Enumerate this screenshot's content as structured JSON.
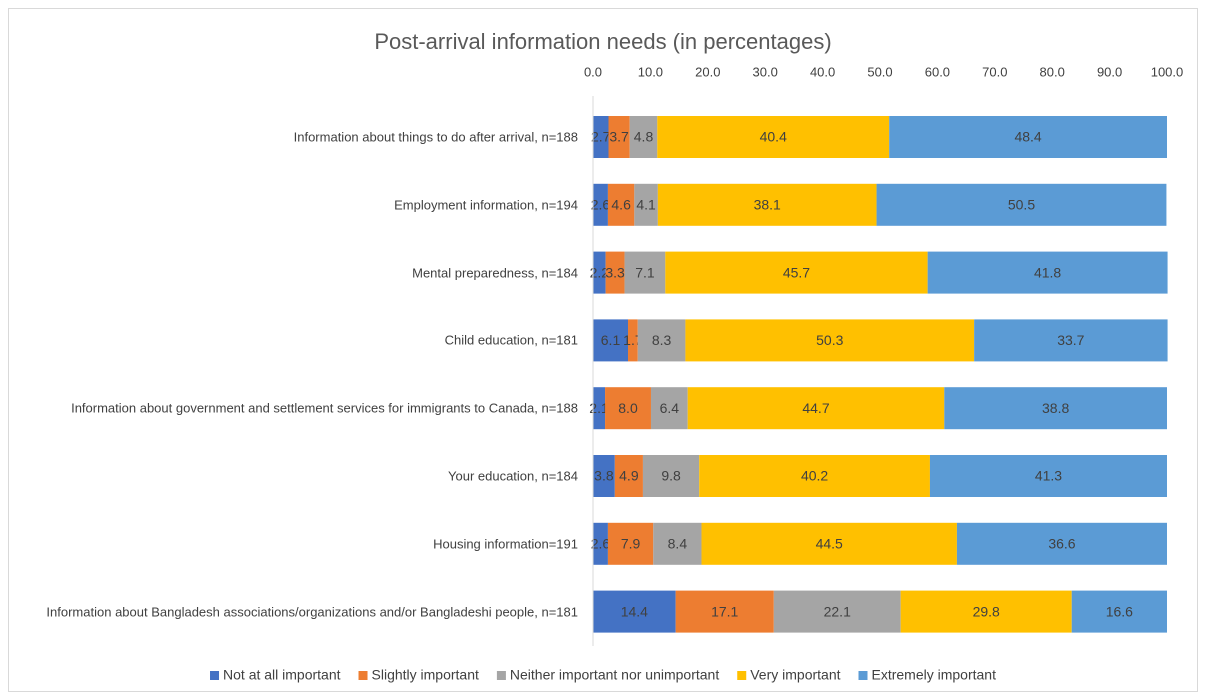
{
  "chart_data": {
    "type": "stacked-bar-horizontal",
    "title": "Post-arrival information needs (in percentages)",
    "categories": [
      "Information about things to do after arrival, n=188",
      "Employment information, n=194",
      "Mental preparedness, n=184",
      "Child education, n=181",
      "Information about government and settlement services for immigrants to Canada, n=188",
      "Your education, n=184",
      "Housing information=191",
      "Information about Bangladesh associations/organizations and/or Bangladeshi people, n=181"
    ],
    "series": [
      {
        "name": "Not at all important",
        "color": "#4472c4",
        "values": [
          2.7,
          2.6,
          2.2,
          6.1,
          2.1,
          3.8,
          2.6,
          14.4
        ],
        "value_labels": [
          "2.7",
          "2.6",
          "2.2",
          "6.1",
          "2.1",
          "3.8",
          "2.6",
          "14.4"
        ]
      },
      {
        "name": "Slightly important",
        "color": "#ed7d31",
        "values": [
          3.7,
          4.6,
          3.3,
          1.7,
          8.0,
          4.9,
          7.9,
          17.1
        ],
        "value_labels": [
          "3.7",
          "4.6",
          "3.3",
          "1.7",
          "8.0",
          "4.9",
          "7.9",
          "17.1"
        ]
      },
      {
        "name": "Neither important nor unimportant",
        "color": "#a5a5a5",
        "values": [
          4.8,
          4.1,
          7.1,
          8.3,
          6.4,
          9.8,
          8.4,
          22.1
        ],
        "value_labels": [
          "4.8",
          "4.1",
          "7.1",
          "8.3",
          "6.4",
          "9.8",
          "8.4",
          "22.1"
        ]
      },
      {
        "name": "Very important",
        "color": "#ffc000",
        "values": [
          40.4,
          38.1,
          45.7,
          50.3,
          44.7,
          40.2,
          44.5,
          29.8
        ],
        "value_labels": [
          "40.4",
          "38.1",
          "45.7",
          "50.3",
          "44.7",
          "40.2",
          "44.5",
          "29.8"
        ]
      },
      {
        "name": "Extremely important",
        "color": "#5b9bd5",
        "values": [
          48.4,
          50.5,
          41.8,
          33.7,
          38.8,
          41.3,
          36.6,
          16.6
        ],
        "value_labels": [
          "48.4",
          "50.5",
          "41.8",
          "33.7",
          "38.8",
          "41.3",
          "36.6",
          "16.6"
        ]
      }
    ],
    "xlim": [
      0,
      100
    ],
    "xticks": [
      {
        "value": 0,
        "label": "0.0"
      },
      {
        "value": 10,
        "label": "10.0"
      },
      {
        "value": 20,
        "label": "20.0"
      },
      {
        "value": 30,
        "label": "30.0"
      },
      {
        "value": 40,
        "label": "40.0"
      },
      {
        "value": 50,
        "label": "50.0"
      },
      {
        "value": 60,
        "label": "60.0"
      },
      {
        "value": 70,
        "label": "70.0"
      },
      {
        "value": 80,
        "label": "80.0"
      },
      {
        "value": 90,
        "label": "90.0"
      },
      {
        "value": 100,
        "label": "100.0"
      }
    ],
    "legend": "bottom"
  }
}
